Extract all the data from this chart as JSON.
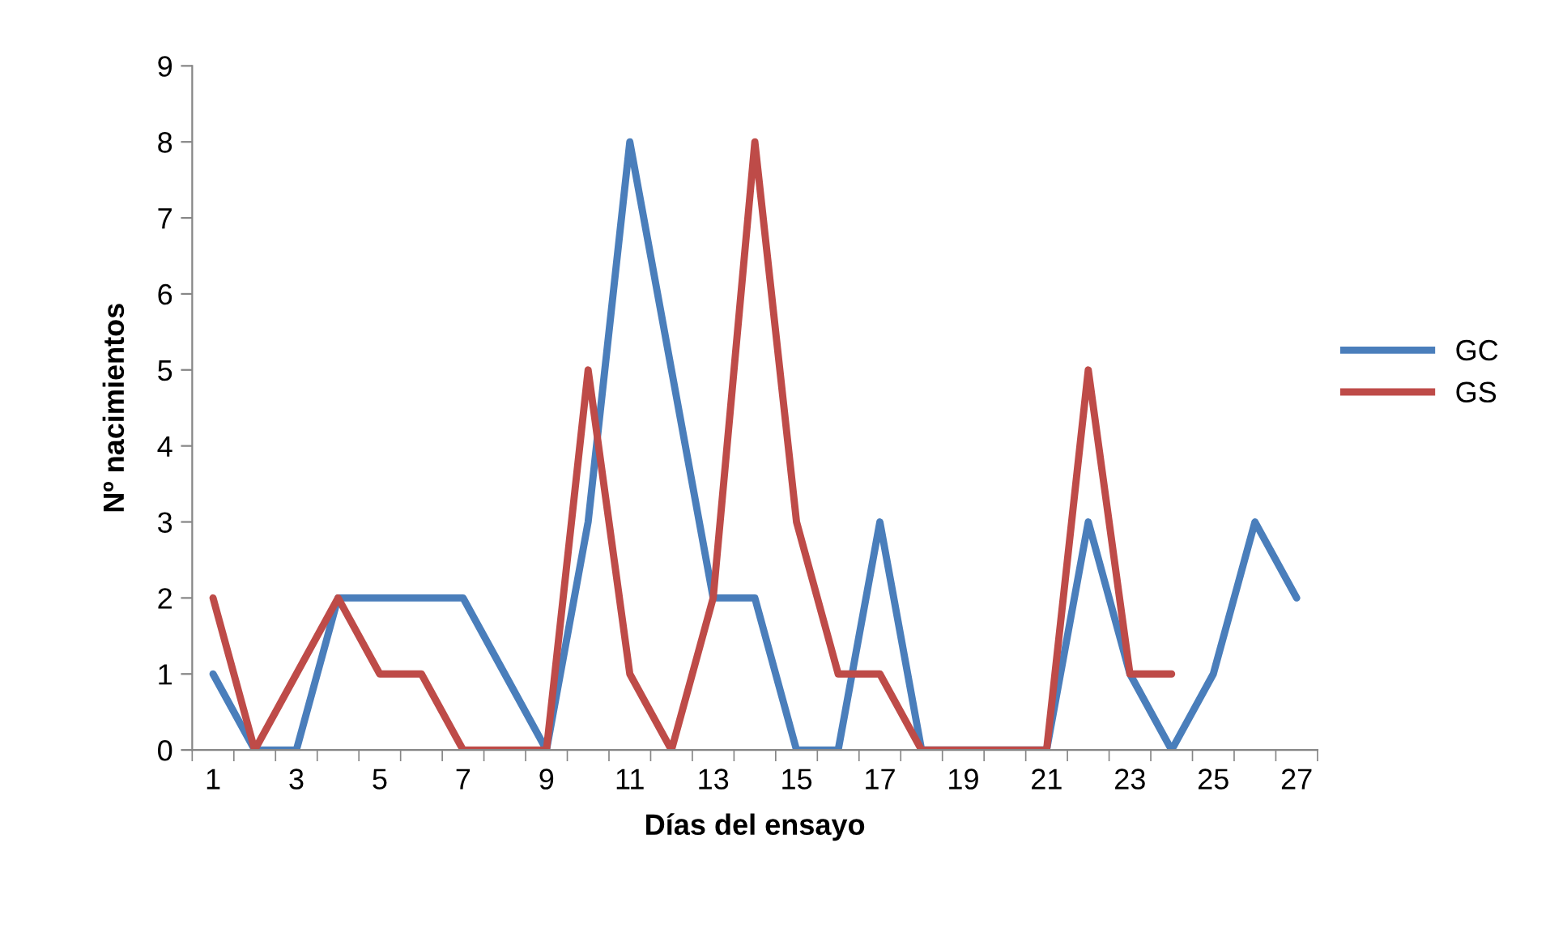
{
  "chart_data": {
    "type": "line",
    "xlabel": "Días del ensayo",
    "ylabel": "Nº nacimientos",
    "categories": [
      "1",
      null,
      "3",
      null,
      "5",
      null,
      "7",
      null,
      "9",
      null,
      "11",
      null,
      "13",
      null,
      "15",
      null,
      "17",
      null,
      "19",
      null,
      "21",
      null,
      "23",
      null,
      "25",
      null,
      "27"
    ],
    "series": [
      {
        "name": "GC",
        "color": "#4a7ebb",
        "values": [
          1,
          0,
          0,
          2,
          2,
          2,
          2,
          1,
          0,
          3,
          8,
          5,
          2,
          2,
          0,
          0,
          3,
          0,
          0,
          0,
          0,
          3,
          1,
          0,
          1,
          3,
          2
        ]
      },
      {
        "name": "GS",
        "color": "#be4b48",
        "values": [
          2,
          0,
          1,
          2,
          1,
          1,
          0,
          0,
          0,
          5,
          1,
          0,
          2,
          8,
          3,
          1,
          1,
          0,
          0,
          0,
          0,
          5,
          1,
          1,
          null,
          null,
          null
        ]
      }
    ],
    "ylim": [
      0,
      9
    ],
    "yticks": [
      0,
      1,
      2,
      3,
      4,
      5,
      6,
      7,
      8,
      9
    ],
    "grid": false,
    "legend": "right",
    "marker": "none",
    "line_style": "solid"
  }
}
